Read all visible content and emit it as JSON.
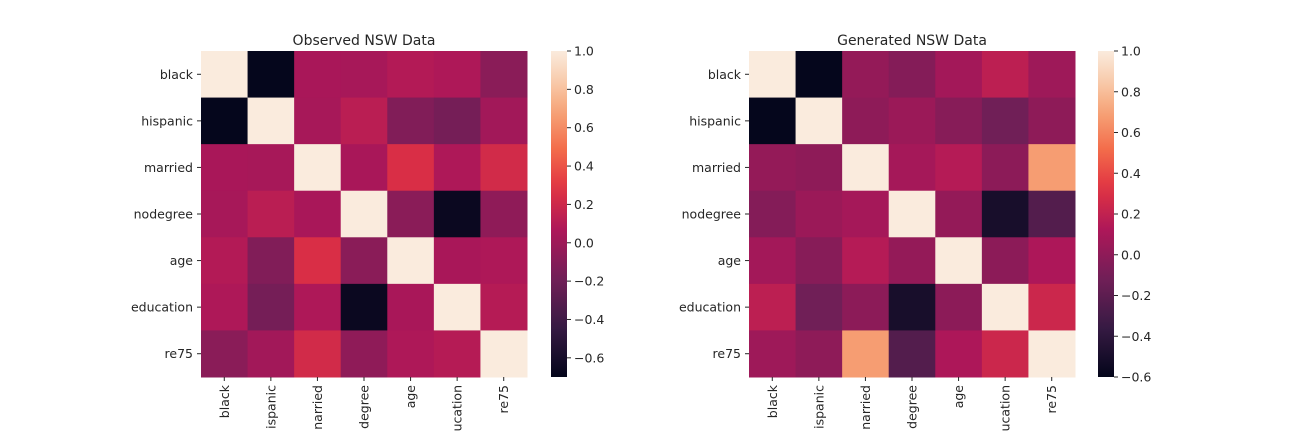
{
  "chart_data": [
    {
      "type": "heatmap",
      "title": "Observed NSW Data",
      "xlabel": "",
      "ylabel": "",
      "rows": [
        "black",
        "hispanic",
        "married",
        "nodegree",
        "age",
        "education",
        "re75"
      ],
      "columns": [
        "black",
        "hispanic",
        "married",
        "nodegree",
        "age",
        "education",
        "re75"
      ],
      "column_tick_labels": [
        "black",
        "ispanic",
        "narried",
        "degree",
        "age",
        "ucation",
        "re75"
      ],
      "values": [
        [
          1.0,
          -0.69,
          0.05,
          0.04,
          0.09,
          0.07,
          -0.08
        ],
        [
          -0.69,
          1.0,
          0.04,
          0.12,
          -0.12,
          -0.17,
          0.02
        ],
        [
          0.05,
          0.04,
          1.0,
          0.05,
          0.25,
          0.07,
          0.22
        ],
        [
          0.04,
          0.12,
          0.05,
          1.0,
          -0.08,
          -0.66,
          -0.06
        ],
        [
          0.09,
          -0.12,
          0.25,
          -0.08,
          1.0,
          0.05,
          0.07
        ],
        [
          0.07,
          -0.17,
          0.07,
          -0.66,
          0.05,
          1.0,
          0.1
        ],
        [
          -0.08,
          0.02,
          0.22,
          -0.06,
          0.07,
          0.1,
          1.0
        ]
      ],
      "vmin": -0.7,
      "vmax": 1.0,
      "colorbar_ticks": [
        "1.0",
        "0.8",
        "0.6",
        "0.4",
        "0.2",
        "0.0",
        "−0.2",
        "−0.4",
        "−0.6"
      ],
      "colorbar_tick_values": [
        1.0,
        0.8,
        0.6,
        0.4,
        0.2,
        0.0,
        -0.2,
        -0.4,
        -0.6
      ],
      "colormap": "rocket"
    },
    {
      "type": "heatmap",
      "title": "Generated NSW Data",
      "xlabel": "",
      "ylabel": "",
      "rows": [
        "black",
        "hispanic",
        "married",
        "nodegree",
        "age",
        "education",
        "re75"
      ],
      "columns": [
        "black",
        "hispanic",
        "married",
        "nodegree",
        "age",
        "education",
        "re75"
      ],
      "column_tick_labels": [
        "black",
        "ispanic",
        "narried",
        "degree",
        "age",
        "ucation",
        "re75"
      ],
      "values": [
        [
          1.0,
          -0.59,
          0.02,
          -0.04,
          0.08,
          0.18,
          0.06
        ],
        [
          -0.59,
          1.0,
          0.0,
          0.05,
          -0.03,
          -0.12,
          0.0
        ],
        [
          0.02,
          0.0,
          1.0,
          0.09,
          0.15,
          -0.01,
          0.68
        ],
        [
          -0.04,
          0.05,
          0.09,
          1.0,
          0.02,
          -0.5,
          -0.24
        ],
        [
          0.08,
          -0.03,
          0.15,
          0.02,
          1.0,
          -0.01,
          0.12
        ],
        [
          0.18,
          -0.12,
          -0.01,
          -0.5,
          -0.01,
          1.0,
          0.24
        ],
        [
          0.06,
          0.0,
          0.68,
          -0.24,
          0.12,
          0.24,
          1.0
        ]
      ],
      "vmin": -0.6,
      "vmax": 1.0,
      "colorbar_ticks": [
        "1.0",
        "0.8",
        "0.6",
        "0.4",
        "0.2",
        "0.0",
        "−0.2",
        "−0.4",
        "−0.6"
      ],
      "colorbar_tick_values": [
        1.0,
        0.8,
        0.6,
        0.4,
        0.2,
        0.0,
        -0.2,
        -0.4,
        -0.6
      ],
      "colormap": "rocket"
    }
  ]
}
